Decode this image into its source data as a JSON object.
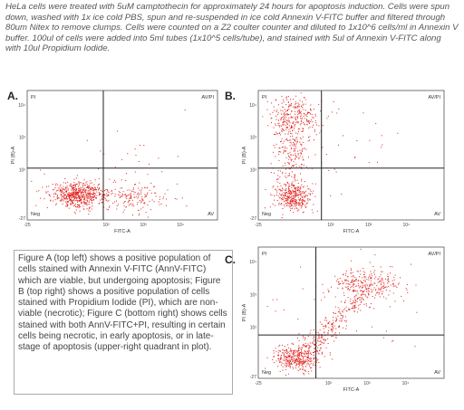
{
  "intro": "HeLa cells were treated with 5uM camptothecin for approximately 24 hours for apoptosis induction. Cells were spun down, washed with 1x ice cold PBS, spun and re-suspended in ice cold Annexin V-FITC buffer and filtered through 80um Nitex to remove clumps. Cells were counted on a Z2 coulter counter and diluted to 1x10^6 cells/ml in Annexin V buffer. 100ul of cells were added into 5ml tubes (1x10^5 cells/tube), and stained with 5ul of Annexin V-FITC along with 10ul Propidium Iodide.",
  "panels": [
    {
      "label": "A.",
      "quadrants": [
        "PI",
        "AV/PI",
        "Neg",
        "AV"
      ],
      "x_label": "FITC-A",
      "y_label": "PI (B)-A",
      "x_ticks": [
        "-25",
        "10²",
        "10³",
        "10⁴"
      ],
      "y_ticks": [
        "10⁴",
        "10³",
        "10²",
        "-27"
      ]
    },
    {
      "label": "B.",
      "quadrants": [
        "PI",
        "AV/PI",
        "Neg",
        "AV"
      ],
      "x_label": "FITC-A",
      "y_label": "PI (B)-A",
      "x_ticks": [
        "-25",
        "10²",
        "10³",
        "10⁴"
      ],
      "y_ticks": [
        "10⁴",
        "10³",
        "10²",
        "-27"
      ]
    },
    {
      "label": "C.",
      "quadrants": [
        "PI",
        "AV/PI",
        "Neg",
        "AV"
      ],
      "x_label": "FITC-A",
      "y_label": "PI (B)-A",
      "x_ticks": [
        "-25",
        "10²",
        "10³",
        "10⁴"
      ],
      "y_ticks": [
        "10⁴",
        "10³",
        "10²",
        "-27"
      ]
    }
  ],
  "caption": "Figure A (top left) shows a positive population of cells stained with Annexin V-FITC (AnnV-FITC) which are viable, but undergoing apoptosis; Figure B (top right) shows a positive population of cells stained with Propidium Iodide (PI), which are non-viable (necrotic); Figure C (bottom right) shows cells stained with both AnnV-FITC+PI, resulting in certain cells being necrotic, in early apoptosis, or in late-stage of apoptosis (upper-right quadrant in plot)."
}
